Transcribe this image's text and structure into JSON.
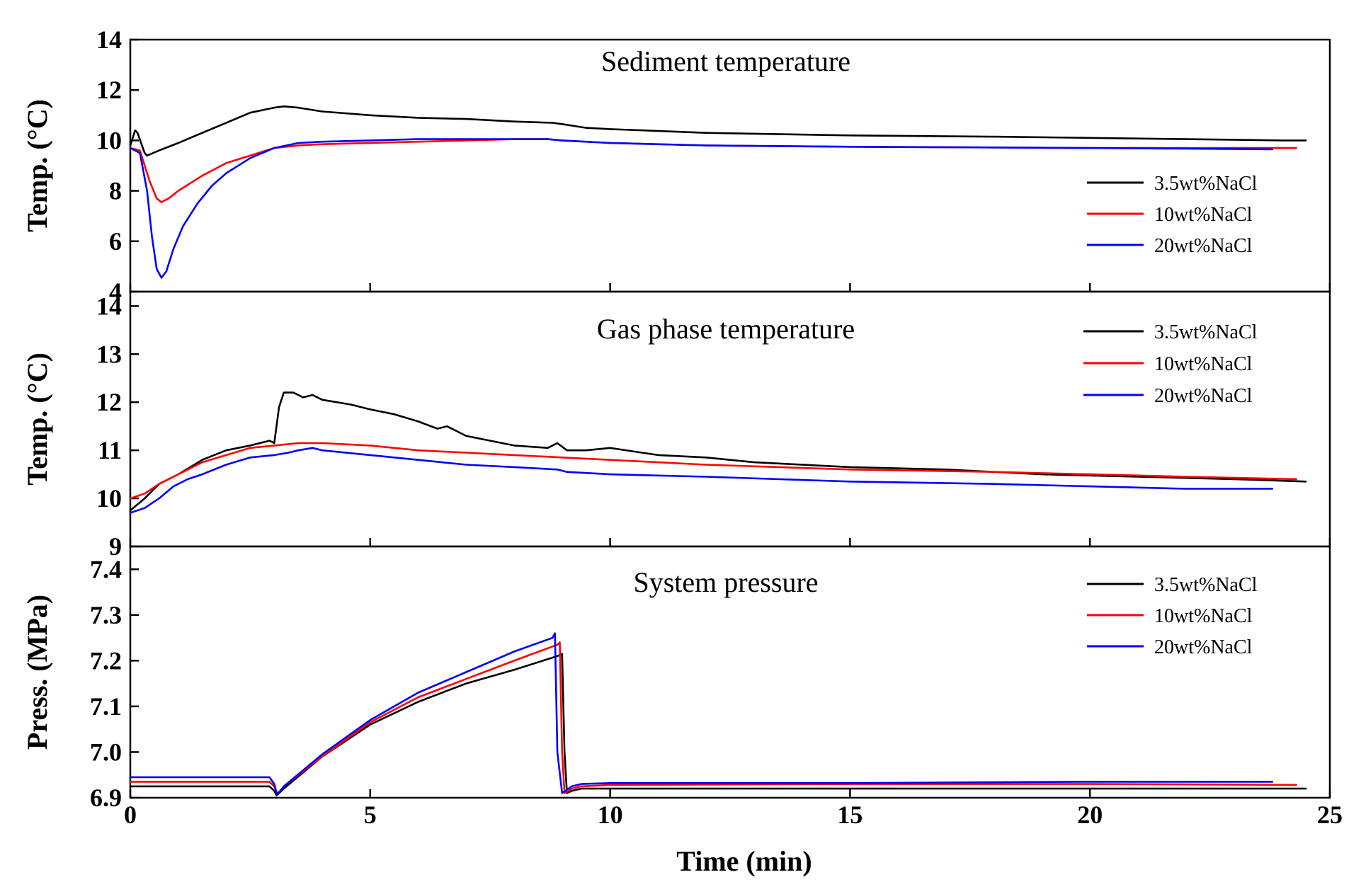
{
  "chart_data": {
    "type": "line",
    "shared_x": {
      "label": "Time (min)",
      "xlim": [
        0,
        25
      ],
      "ticks": [
        0,
        5,
        10,
        15,
        20,
        25
      ]
    },
    "colors": {
      "3.5wt%NaCl": "#000000",
      "10wt%NaCl": "#ff0000",
      "20wt%NaCl": "#0000ff"
    },
    "panels": [
      {
        "id": "sediment",
        "title": "Sediment temperature",
        "ylabel": "Temp. (°C)",
        "ylim": [
          4,
          14
        ],
        "yticks": [
          4,
          6,
          8,
          10,
          12,
          14
        ],
        "legend_position": "right-middle",
        "series": [
          {
            "name": "3.5wt%NaCl",
            "x": [
              0,
              0.1,
              0.15,
              0.3,
              0.35,
              0.6,
              1.0,
              1.5,
              2.0,
              2.5,
              3.0,
              3.2,
              3.5,
              4.0,
              5.0,
              6.0,
              7.0,
              8.0,
              8.8,
              9.0,
              9.5,
              10.0,
              12.0,
              15.0,
              18.0,
              20.0,
              22.0,
              24.0,
              24.5
            ],
            "y": [
              9.8,
              10.4,
              10.3,
              9.5,
              9.4,
              9.6,
              9.9,
              10.3,
              10.7,
              11.1,
              11.3,
              11.35,
              11.3,
              11.15,
              11.0,
              10.9,
              10.85,
              10.75,
              10.7,
              10.65,
              10.5,
              10.45,
              10.3,
              10.2,
              10.15,
              10.1,
              10.05,
              10.0,
              10.0
            ]
          },
          {
            "name": "10wt%NaCl",
            "x": [
              0,
              0.2,
              0.4,
              0.55,
              0.65,
              0.8,
              1.0,
              1.5,
              2.0,
              2.5,
              3.0,
              3.5,
              4.0,
              5.0,
              6.0,
              7.0,
              8.0,
              8.7,
              9.0,
              10.0,
              12.0,
              15.0,
              20.0,
              24.0,
              24.3
            ],
            "y": [
              9.7,
              9.6,
              8.4,
              7.7,
              7.55,
              7.7,
              8.0,
              8.6,
              9.1,
              9.4,
              9.7,
              9.8,
              9.85,
              9.9,
              9.95,
              10.0,
              10.05,
              10.05,
              10.0,
              9.9,
              9.8,
              9.75,
              9.7,
              9.7,
              9.7
            ]
          },
          {
            "name": "20wt%NaCl",
            "x": [
              0,
              0.2,
              0.35,
              0.45,
              0.55,
              0.65,
              0.75,
              0.9,
              1.1,
              1.4,
              1.7,
              2.0,
              2.5,
              3.0,
              3.5,
              4.0,
              5.0,
              6.0,
              7.0,
              8.0,
              8.7,
              9.0,
              10.0,
              12.0,
              15.0,
              20.0,
              23.8
            ],
            "y": [
              9.7,
              9.5,
              8.0,
              6.2,
              4.9,
              4.55,
              4.8,
              5.7,
              6.6,
              7.5,
              8.2,
              8.7,
              9.3,
              9.7,
              9.9,
              9.95,
              10.0,
              10.05,
              10.05,
              10.05,
              10.05,
              10.0,
              9.9,
              9.8,
              9.75,
              9.7,
              9.65
            ]
          }
        ]
      },
      {
        "id": "gas",
        "title": "Gas phase temperature",
        "ylabel": "Temp. (°C)",
        "ylim": [
          9,
          14.3
        ],
        "yticks": [
          9,
          10,
          11,
          12,
          13,
          14
        ],
        "legend_position": "top-right",
        "series": [
          {
            "name": "3.5wt%NaCl",
            "x": [
              0,
              0.3,
              0.6,
              1.0,
              1.5,
              2.0,
              2.5,
              2.9,
              3.0,
              3.1,
              3.2,
              3.4,
              3.6,
              3.8,
              4.0,
              4.3,
              4.6,
              5.0,
              5.5,
              6.0,
              6.4,
              6.6,
              7.0,
              7.5,
              8.0,
              8.7,
              8.9,
              9.1,
              9.5,
              10.0,
              11.0,
              12.0,
              13.0,
              15.0,
              17.0,
              19.0,
              21.0,
              23.0,
              24.5
            ],
            "y": [
              9.75,
              10.0,
              10.3,
              10.5,
              10.8,
              11.0,
              11.1,
              11.2,
              11.15,
              11.9,
              12.2,
              12.2,
              12.1,
              12.15,
              12.05,
              12.0,
              11.95,
              11.85,
              11.75,
              11.6,
              11.45,
              11.5,
              11.3,
              11.2,
              11.1,
              11.05,
              11.15,
              11.0,
              11.0,
              11.05,
              10.9,
              10.85,
              10.75,
              10.65,
              10.6,
              10.5,
              10.45,
              10.4,
              10.35
            ]
          },
          {
            "name": "10wt%NaCl",
            "x": [
              0,
              0.3,
              0.6,
              1.0,
              1.5,
              2.0,
              2.5,
              3.0,
              3.5,
              4.0,
              5.0,
              6.0,
              7.0,
              8.0,
              9.0,
              10.0,
              12.0,
              15.0,
              18.0,
              20.0,
              22.0,
              24.3
            ],
            "y": [
              10.0,
              10.1,
              10.3,
              10.5,
              10.75,
              10.9,
              11.05,
              11.1,
              11.15,
              11.15,
              11.1,
              11.0,
              10.95,
              10.9,
              10.85,
              10.8,
              10.7,
              10.6,
              10.55,
              10.5,
              10.45,
              10.4
            ]
          },
          {
            "name": "20wt%NaCl",
            "x": [
              0,
              0.3,
              0.6,
              0.9,
              1.2,
              1.5,
              2.0,
              2.5,
              3.0,
              3.3,
              3.5,
              3.8,
              4.0,
              5.0,
              6.0,
              7.0,
              8.0,
              8.9,
              9.1,
              10.0,
              12.0,
              15.0,
              18.0,
              20.0,
              22.0,
              23.8
            ],
            "y": [
              9.7,
              9.8,
              10.0,
              10.25,
              10.4,
              10.5,
              10.7,
              10.85,
              10.9,
              10.95,
              11.0,
              11.05,
              11.0,
              10.9,
              10.8,
              10.7,
              10.65,
              10.6,
              10.55,
              10.5,
              10.45,
              10.35,
              10.3,
              10.25,
              10.2,
              10.2
            ]
          }
        ]
      },
      {
        "id": "pressure",
        "title": "System pressure",
        "ylabel": "Press. (MPa)",
        "ylim": [
          6.9,
          7.45
        ],
        "yticks": [
          6.9,
          7.0,
          7.1,
          7.2,
          7.3,
          7.4
        ],
        "legend_position": "top-right",
        "series": [
          {
            "name": "3.5wt%NaCl",
            "x": [
              0,
              1.0,
              2.0,
              2.9,
              3.0,
              3.05,
              3.1,
              3.2,
              4.0,
              5.0,
              6.0,
              7.0,
              8.0,
              8.9,
              9.0,
              9.05,
              9.1,
              9.2,
              9.4,
              10.0,
              15.0,
              20.0,
              24.5
            ],
            "y": [
              6.925,
              6.925,
              6.925,
              6.925,
              6.915,
              6.905,
              6.91,
              6.92,
              6.99,
              7.06,
              7.11,
              7.15,
              7.18,
              7.21,
              7.215,
              7.0,
              6.91,
              6.915,
              6.92,
              6.92,
              6.92,
              6.92,
              6.92
            ]
          },
          {
            "name": "10wt%NaCl",
            "x": [
              0,
              1.0,
              2.0,
              2.9,
              3.0,
              3.05,
              3.1,
              3.2,
              4.0,
              5.0,
              6.0,
              7.0,
              8.0,
              8.9,
              8.95,
              9.0,
              9.05,
              9.2,
              9.4,
              10.0,
              15.0,
              20.0,
              24.3
            ],
            "y": [
              6.935,
              6.935,
              6.935,
              6.935,
              6.925,
              6.91,
              6.912,
              6.925,
              6.99,
              7.065,
              7.12,
              7.16,
              7.2,
              7.235,
              7.24,
              7.0,
              6.91,
              6.92,
              6.925,
              6.928,
              6.93,
              6.93,
              6.928
            ]
          },
          {
            "name": "20wt%NaCl",
            "x": [
              0,
              1.0,
              2.0,
              2.9,
              3.0,
              3.05,
              3.1,
              3.2,
              4.0,
              5.0,
              6.0,
              7.0,
              8.0,
              8.8,
              8.85,
              8.9,
              9.0,
              9.2,
              9.4,
              10.0,
              15.0,
              20.0,
              23.8
            ],
            "y": [
              6.945,
              6.945,
              6.945,
              6.945,
              6.93,
              6.91,
              6.912,
              6.925,
              6.995,
              7.07,
              7.13,
              7.175,
              7.22,
              7.25,
              7.26,
              7.0,
              6.91,
              6.925,
              6.93,
              6.932,
              6.932,
              6.935,
              6.935
            ]
          }
        ]
      }
    ]
  }
}
